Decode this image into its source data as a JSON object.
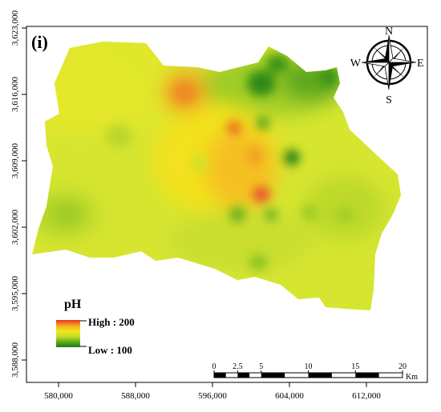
{
  "panel_label": "(i)",
  "x_ticks": [
    "580,000",
    "588,000",
    "596,000",
    "604,000",
    "612,000"
  ],
  "y_ticks": [
    "3,623,000",
    "3,616,000",
    "3,609,000",
    "3,602,000",
    "3,595,000",
    "3,588,000"
  ],
  "compass": {
    "north": "N",
    "south": "S",
    "east": "E",
    "west": "W"
  },
  "legend": {
    "title": "pH",
    "high_label": "High : 200",
    "low_label": "Low : 100",
    "colors": [
      "#e8321e",
      "#f5a623",
      "#f2e51a",
      "#c8de2a",
      "#5fae1e",
      "#1f7a12"
    ]
  },
  "scale_bar": {
    "ticks": [
      "0",
      "2.5",
      "5",
      "10",
      "15",
      "20"
    ],
    "unit": "Km"
  },
  "colors": {
    "frame": "#000000",
    "base_fill": "#d8e62e",
    "high": "#e8321e",
    "low": "#1f7a12"
  }
}
